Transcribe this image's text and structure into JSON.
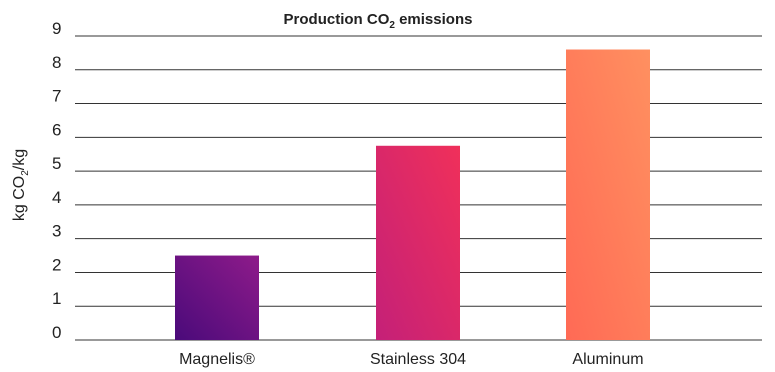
{
  "chart_data": {
    "type": "bar",
    "title": "Production CO2 emissions",
    "title_parts": {
      "pre": "Production CO",
      "sub": "2",
      "post": " emissions"
    },
    "ylabel": "kg CO2/kg",
    "ylabel_parts": {
      "pre": "kg CO",
      "sub": "2",
      "post": "/kg"
    },
    "xlabel": "",
    "ylim": [
      0,
      9
    ],
    "yticks": [
      0,
      1,
      2,
      3,
      4,
      5,
      6,
      7,
      8,
      9
    ],
    "grid": true,
    "categories": [
      "Magnelis®",
      "Stainless 304",
      "Aluminum"
    ],
    "values": [
      2.5,
      5.75,
      8.6
    ],
    "colors": [
      {
        "from": "#4a0a7a",
        "to": "#8e1b8a"
      },
      {
        "from": "#c42078",
        "to": "#f0305a"
      },
      {
        "from": "#ff6a55",
        "to": "#ff9060"
      }
    ]
  }
}
